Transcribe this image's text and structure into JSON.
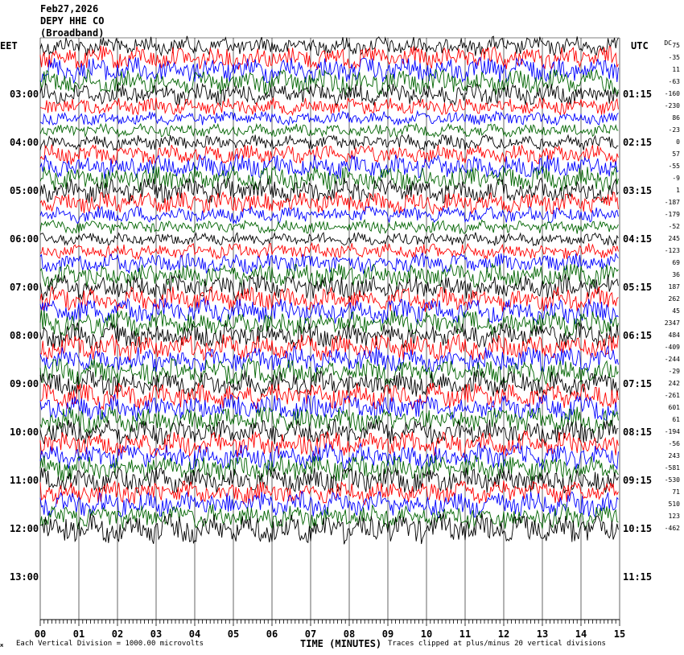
{
  "header": {
    "date": "Feb27,2026",
    "station": "DEPY HHE CO",
    "note": "(Broadband)"
  },
  "axes": {
    "left_label": "EET",
    "right_label": "UTC",
    "dc_label": "DC",
    "xlabel": "TIME (MINUTES)",
    "x_ticks": [
      "00",
      "01",
      "02",
      "03",
      "04",
      "05",
      "06",
      "07",
      "08",
      "09",
      "10",
      "11",
      "12",
      "13",
      "14",
      "15"
    ]
  },
  "footer": {
    "scale_note": "Each Vertical Division = 1000.00 microvolts",
    "clip_note": "Traces clipped at plus/minus 20 vertical divisions"
  },
  "chart_data": {
    "type": "line",
    "title": "DEPY HHE CO",
    "xlabel": "TIME (MINUTES)",
    "xlim": [
      0,
      15
    ],
    "left_time_labels": [
      "03:00",
      "04:00",
      "05:00",
      "06:00",
      "07:00",
      "08:00",
      "09:00",
      "10:00",
      "11:00",
      "12:00",
      "13:00"
    ],
    "right_time_labels": [
      "01:15",
      "02:15",
      "03:15",
      "04:15",
      "05:15",
      "06:15",
      "07:15",
      "08:15",
      "09:15",
      "10:15",
      "11:15"
    ],
    "trace_colors": [
      "#000000",
      "#ff0000",
      "#0000ff",
      "#006400"
    ],
    "active_traces": 41,
    "dc_offsets": [
      "75",
      "-35",
      "11",
      "-63",
      "-160",
      "-230",
      "86",
      "-23",
      "0",
      "57",
      "-55",
      "-9",
      "1",
      "-187",
      "-179",
      "-52",
      "245",
      "-123",
      "69",
      "36",
      "187",
      "262",
      "45",
      "2347",
      "484",
      "-409",
      "-244",
      "-29",
      "242",
      "-261",
      "601",
      "61",
      "-194",
      "-56",
      "243",
      "-581",
      "-530",
      "71",
      "510",
      "123",
      "-462"
    ],
    "vertical_division_uV": 1000.0,
    "clip_divisions": 20
  }
}
